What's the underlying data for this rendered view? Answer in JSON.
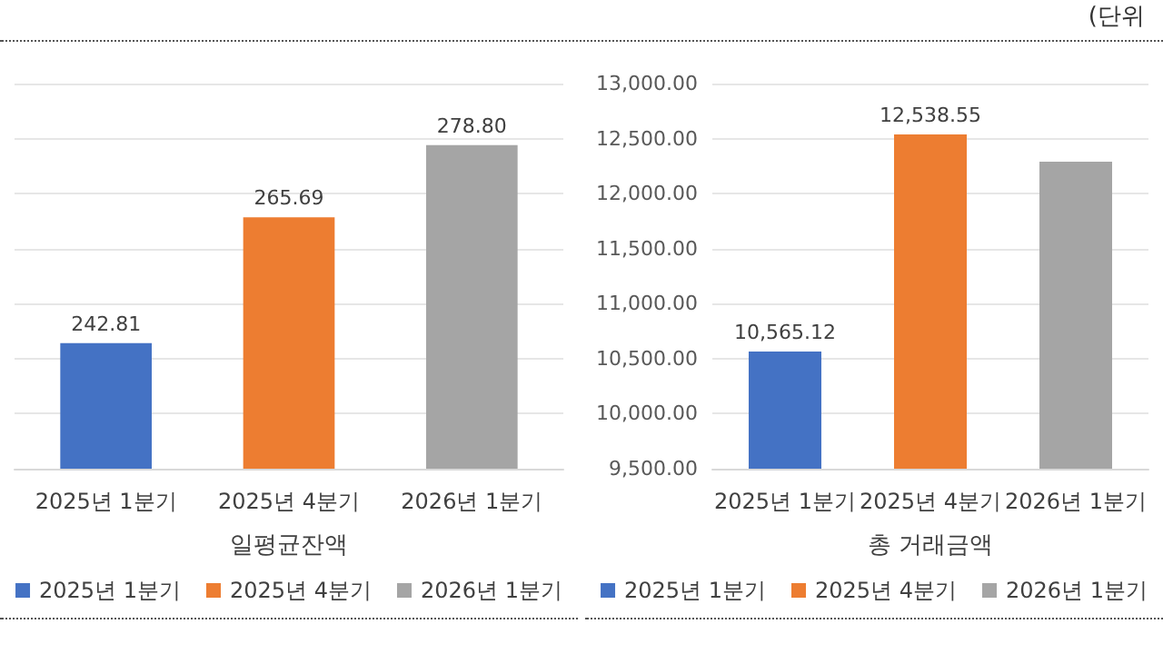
{
  "chart_data": [
    {
      "type": "bar",
      "xlabel": "일평균잔액",
      "categories": [
        "2025년 1분기",
        "2025년 4분기",
        "2026년 1분기"
      ],
      "ylim": [
        220,
        290
      ],
      "yticks": [
        {
          "value": 220,
          "label": null
        },
        {
          "value": 230,
          "label": null
        },
        {
          "value": 240,
          "label": null
        },
        {
          "value": 250,
          "label": null
        },
        {
          "value": 260,
          "label": null
        },
        {
          "value": 270,
          "label": null
        },
        {
          "value": 280,
          "label": null
        },
        {
          "value": 290,
          "label": null
        }
      ],
      "tick_labels": "x",
      "grid": "y",
      "legend": "bottom",
      "series": [
        {
          "name": "2025년 1분기",
          "color": "#4472c4",
          "values": [
            242.81,
            null,
            null
          ],
          "value_labels": [
            "242.81",
            null,
            null
          ]
        },
        {
          "name": "2025년 4분기",
          "color": "#ed7d31",
          "values": [
            null,
            265.69,
            null
          ],
          "value_labels": [
            null,
            "265.69",
            null
          ]
        },
        {
          "name": "2026년 1분기",
          "color": "#a5a5a5",
          "values": [
            null,
            null,
            278.8
          ],
          "value_labels": [
            null,
            null,
            "278.80"
          ]
        }
      ]
    },
    {
      "type": "bar",
      "xlabel": "총 거래금액",
      "annotations": [
        "(단위"
      ],
      "categories": [
        "2025년 1분기",
        "2025년 4분기",
        "2026년 1분기"
      ],
      "ylim": [
        9500,
        13000
      ],
      "yticks": [
        {
          "value": 9500,
          "label": "9,500.00"
        },
        {
          "value": 10000,
          "label": "10,000.00"
        },
        {
          "value": 10500,
          "label": "10,500.00"
        },
        {
          "value": 11000,
          "label": "11,000.00"
        },
        {
          "value": 11500,
          "label": "11,500.00"
        },
        {
          "value": 12000,
          "label": "12,000.00"
        },
        {
          "value": 12500,
          "label": "12,500.00"
        },
        {
          "value": 13000,
          "label": "13,000.00"
        }
      ],
      "grid": "y",
      "legend": "bottom",
      "series": [
        {
          "name": "2025년 1분기",
          "color": "#4472c4",
          "values": [
            10565.12,
            null,
            null
          ],
          "value_labels": [
            "10,565.12",
            null,
            null
          ]
        },
        {
          "name": "2025년 4분기",
          "color": "#ed7d31",
          "values": [
            null,
            12538.55,
            null
          ],
          "value_labels": [
            null,
            "12,538.55",
            null
          ]
        },
        {
          "name": "2026년 1분기",
          "color": "#a5a5a5",
          "values": [
            null,
            null,
            12290
          ],
          "value_labels": [
            null,
            null,
            null
          ]
        }
      ]
    }
  ]
}
